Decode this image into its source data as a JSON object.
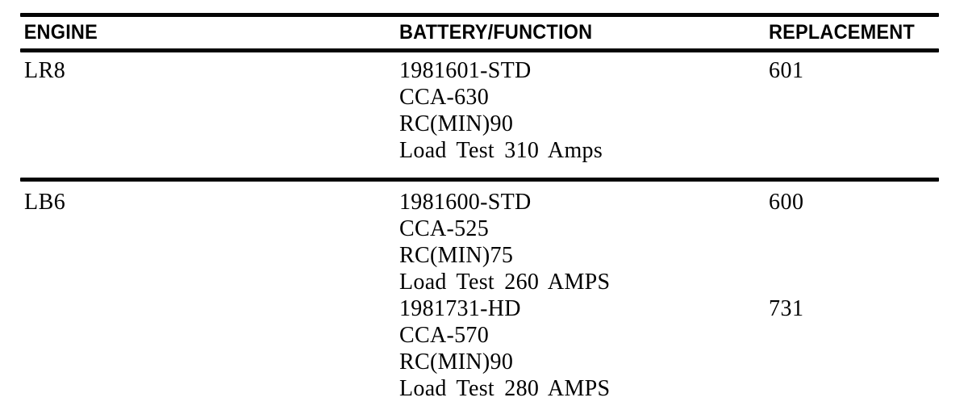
{
  "document": {
    "background_color": "#ffffff",
    "text_color": "#000000"
  },
  "table": {
    "headers": [
      "ENGINE",
      "BATTERY/FUNCTION",
      "REPLACEMENT"
    ],
    "rows": [
      {
        "engine": "LR8",
        "batteries": [
          {
            "lines": [
              "1981601-STD",
              "CCA-630",
              "RC(MIN)90",
              "Load Test 310 Amps"
            ],
            "replacement": "601"
          }
        ]
      },
      {
        "engine": "LB6",
        "batteries": [
          {
            "lines": [
              "1981600-STD",
              "CCA-525",
              "RC(MIN)75",
              "Load Test 260 AMPS"
            ],
            "replacement": "600"
          },
          {
            "lines": [
              "1981731-HD",
              "CCA-570",
              "RC(MIN)90",
              "Load Test 280 AMPS"
            ],
            "replacement": "731"
          }
        ]
      }
    ]
  }
}
